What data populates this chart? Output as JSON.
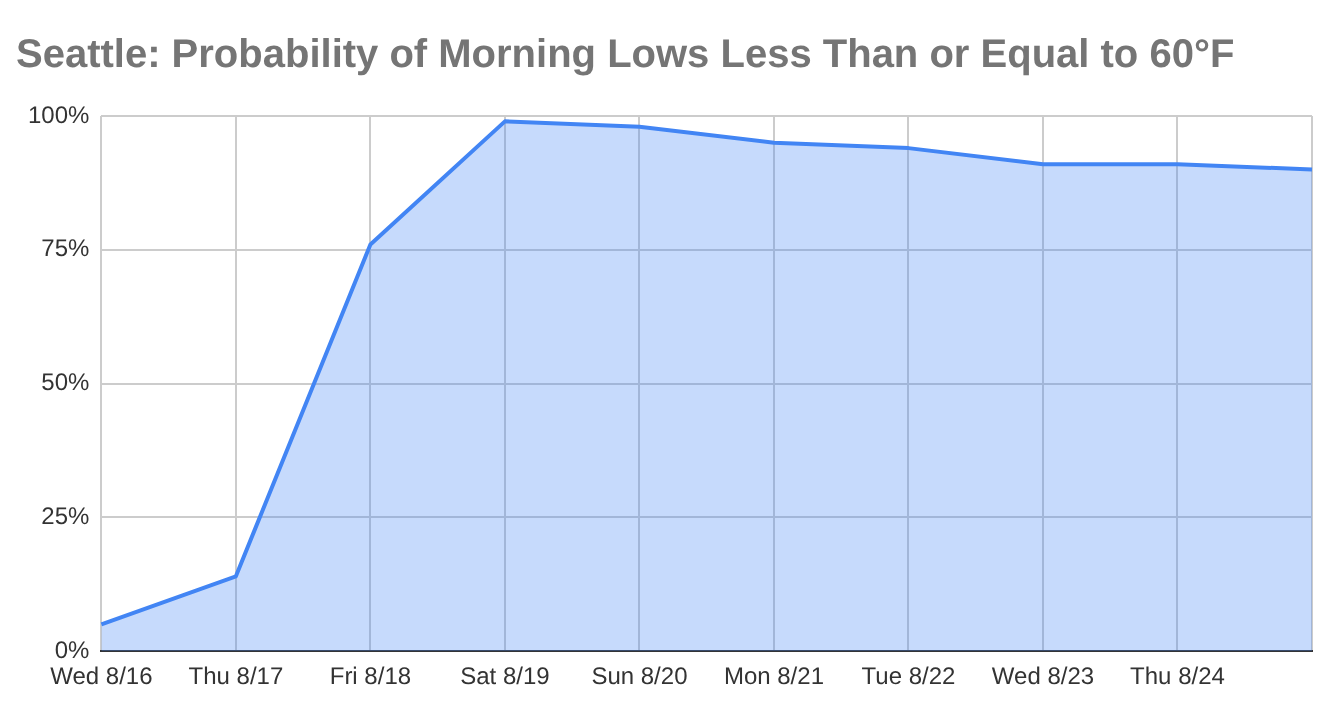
{
  "chart_data": {
    "type": "area",
    "title": "Seattle: Probability of Morning Lows Less Than or Equal to 60°F",
    "categories": [
      "Wed 8/16",
      "Thu 8/17",
      "Fri 8/18",
      "Sat 8/19",
      "Sun 8/20",
      "Mon 8/21",
      "Tue 8/22",
      "Wed 8/23",
      "Thu 8/24",
      null
    ],
    "series": [
      {
        "color": "#4285f4",
        "values": [
          5,
          14,
          76,
          99,
          98,
          95,
          94,
          91,
          91,
          90
        ]
      }
    ],
    "ylim": [
      0,
      100
    ],
    "yticks": [
      {
        "value": 0,
        "label": "0%"
      },
      {
        "value": 25,
        "label": "25%"
      },
      {
        "value": 50,
        "label": "50%"
      },
      {
        "value": 75,
        "label": "75%"
      },
      {
        "value": 100,
        "label": "100%"
      }
    ],
    "grid": true,
    "marker": "none",
    "legend": false
  }
}
